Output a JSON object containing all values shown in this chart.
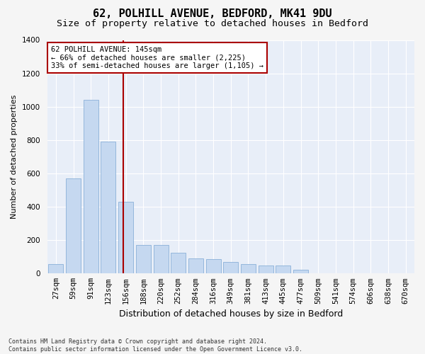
{
  "title1": "62, POLHILL AVENUE, BEDFORD, MK41 9DU",
  "title2": "Size of property relative to detached houses in Bedford",
  "xlabel": "Distribution of detached houses by size in Bedford",
  "ylabel": "Number of detached properties",
  "categories": [
    "27sqm",
    "59sqm",
    "91sqm",
    "123sqm",
    "156sqm",
    "188sqm",
    "220sqm",
    "252sqm",
    "284sqm",
    "316sqm",
    "349sqm",
    "381sqm",
    "413sqm",
    "445sqm",
    "477sqm",
    "509sqm",
    "541sqm",
    "574sqm",
    "606sqm",
    "638sqm",
    "670sqm"
  ],
  "values": [
    55,
    572,
    1042,
    790,
    430,
    170,
    170,
    125,
    90,
    85,
    70,
    55,
    50,
    50,
    22,
    0,
    0,
    0,
    0,
    0,
    0
  ],
  "bar_color": "#c5d8f0",
  "bar_edge_color": "#8ab0d8",
  "vline_color": "#aa0000",
  "annotation_text": "62 POLHILL AVENUE: 145sqm\n← 66% of detached houses are smaller (2,225)\n33% of semi-detached houses are larger (1,105) →",
  "annotation_box_facecolor": "#ffffff",
  "annotation_box_edge": "#aa0000",
  "ylim": [
    0,
    1400
  ],
  "yticks": [
    0,
    200,
    400,
    600,
    800,
    1000,
    1200,
    1400
  ],
  "footnote": "Contains HM Land Registry data © Crown copyright and database right 2024.\nContains public sector information licensed under the Open Government Licence v3.0.",
  "fig_facecolor": "#f5f5f5",
  "plot_bg_color": "#e8eef8",
  "grid_color": "#ffffff",
  "title_fontsize": 11,
  "subtitle_fontsize": 9.5,
  "tick_fontsize": 7.5,
  "ylabel_fontsize": 8,
  "xlabel_fontsize": 9
}
